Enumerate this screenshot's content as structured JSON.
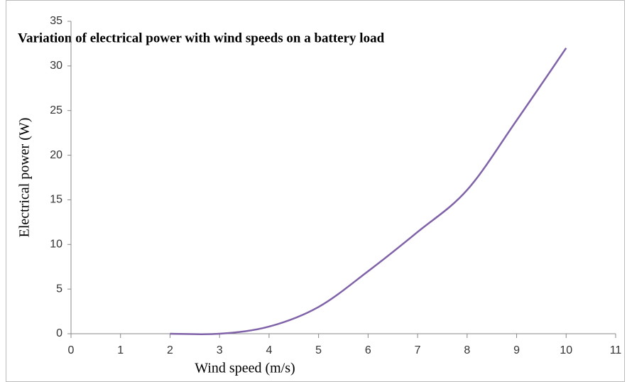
{
  "chart_data": {
    "type": "line",
    "title": "Variation of electrical power with wind speeds on a battery load",
    "x_label": "Wind speed (m/s)",
    "y_label": "Electrical power (W)",
    "x": [
      2,
      3,
      4,
      5,
      6,
      7,
      8,
      9,
      10
    ],
    "series": [
      {
        "name": "Electrical power",
        "color": "#7f62a8",
        "values": [
          0,
          0,
          0.8,
          3.0,
          7.0,
          11.4,
          16.1,
          23.9,
          32.0
        ]
      }
    ],
    "xlim": [
      0,
      11
    ],
    "xticks": [
      0,
      1,
      2,
      3,
      4,
      5,
      6,
      7,
      8,
      9,
      10,
      11
    ],
    "ylim": [
      0,
      35
    ],
    "yticks": [
      0,
      5,
      10,
      15,
      20,
      25,
      30,
      35
    ],
    "grid": false,
    "legend": false
  }
}
